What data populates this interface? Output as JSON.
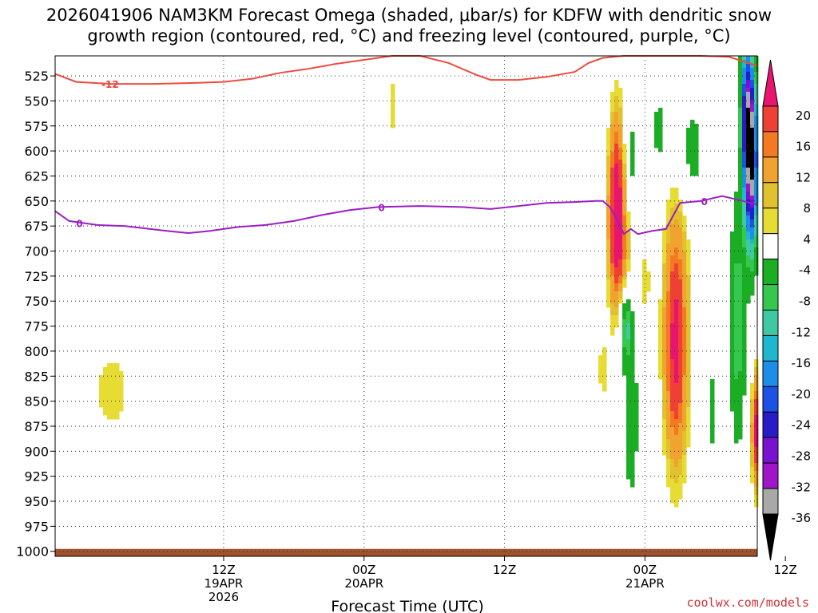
{
  "chart_data": {
    "type": "heatmap",
    "title_line1": "2026041906 NAM3KM Forecast Omega (shaded, μbar/s) for KDFW with dendritic snow",
    "title_line2": "growth region (contoured, red, °C) and freezing level (contoured, purple, °C)",
    "xlabel": "Forecast Time (UTC)",
    "credit": "coolwx.com/models",
    "x_range_hours": [
      -12,
      38
    ],
    "y_levels_hpa": [
      "525",
      "550",
      "575",
      "600",
      "625",
      "650",
      "675",
      "700",
      "725",
      "750",
      "775",
      "800",
      "825",
      "850",
      "875",
      "900",
      "925",
      "950",
      "975",
      "1000"
    ],
    "y_range_hpa": [
      505,
      1005
    ],
    "x_ticks": [
      {
        "hour": 0,
        "label": "12Z",
        "sub1": "19APR",
        "sub2": "2026"
      },
      {
        "hour": 10,
        "label": "00Z",
        "sub1": "20APR",
        "sub2": ""
      },
      {
        "hour": 20,
        "label": "12Z",
        "sub1": "",
        "sub2": ""
      },
      {
        "hour": 30,
        "label": "00Z",
        "sub1": "21APR",
        "sub2": ""
      },
      {
        "hour": 40,
        "label": "12Z",
        "sub1": "",
        "sub2": ""
      }
    ],
    "colorbar": {
      "labels": [
        "20",
        "16",
        "12",
        "8",
        "4",
        "-4",
        "-8",
        "-12",
        "-16",
        "-20",
        "-24",
        "-28",
        "-32",
        "-36"
      ],
      "colors": [
        "#e8156e",
        "#ef4035",
        "#f47a22",
        "#f0a32f",
        "#e2c12f",
        "#e6dc34",
        "#ffffff",
        "#1bae25",
        "#36c74e",
        "#3fc9a2",
        "#1fb6cf",
        "#1c8ee8",
        "#1c50e6",
        "#2a1bc8",
        "#7a10d0",
        "#9e16c8",
        "#a8a8a8",
        "#000000"
      ],
      "omega_bins": [
        20,
        18,
        16,
        14,
        12,
        10,
        8,
        6,
        4,
        -4,
        -6,
        -8,
        -10,
        -12,
        -14,
        -16,
        -18,
        -20,
        -22,
        -24,
        -26,
        -28,
        -30,
        -32,
        -34,
        -36
      ]
    },
    "brown_ground_level_hpa": 1000,
    "contour_red_label": "-12",
    "contour_purple_label": "0",
    "contour_red_minus12_hpa": [
      {
        "hour": -12.0,
        "p": 523
      },
      {
        "hour": -10.5,
        "p": 531
      },
      {
        "hour": -8.0,
        "p": 533
      },
      {
        "hour": -5.0,
        "p": 533
      },
      {
        "hour": -2.0,
        "p": 532
      },
      {
        "hour": 0.0,
        "p": 531
      },
      {
        "hour": 2.0,
        "p": 528
      },
      {
        "hour": 4.0,
        "p": 522
      },
      {
        "hour": 6.0,
        "p": 518
      },
      {
        "hour": 8.0,
        "p": 513
      },
      {
        "hour": 9.5,
        "p": 510
      },
      {
        "hour": 11.0,
        "p": 507
      },
      {
        "hour": 12.0,
        "p": 504
      },
      {
        "hour": 14.0,
        "p": 504
      },
      {
        "hour": 16.0,
        "p": 512
      },
      {
        "hour": 18.0,
        "p": 524
      },
      {
        "hour": 19.0,
        "p": 529
      },
      {
        "hour": 21.0,
        "p": 529
      },
      {
        "hour": 23.0,
        "p": 526
      },
      {
        "hour": 25.0,
        "p": 521
      },
      {
        "hour": 26.0,
        "p": 512
      },
      {
        "hour": 27.0,
        "p": 507
      },
      {
        "hour": 28.5,
        "p": 505
      },
      {
        "hour": 30.0,
        "p": 505
      },
      {
        "hour": 32.0,
        "p": 505
      },
      {
        "hour": 34.0,
        "p": 505
      },
      {
        "hour": 36.0,
        "p": 506
      },
      {
        "hour": 38.0,
        "p": 515
      }
    ],
    "contour_purple_zero_hpa": [
      {
        "hour": -12.0,
        "p": 660
      },
      {
        "hour": -11.0,
        "p": 670
      },
      {
        "hour": -9.0,
        "p": 674
      },
      {
        "hour": -7.0,
        "p": 675
      },
      {
        "hour": -4.0,
        "p": 680
      },
      {
        "hour": -2.5,
        "p": 682
      },
      {
        "hour": -1.0,
        "p": 680
      },
      {
        "hour": 1.0,
        "p": 676
      },
      {
        "hour": 3.0,
        "p": 674
      },
      {
        "hour": 5.0,
        "p": 670
      },
      {
        "hour": 7.0,
        "p": 664
      },
      {
        "hour": 9.0,
        "p": 659
      },
      {
        "hour": 11.0,
        "p": 656
      },
      {
        "hour": 14.0,
        "p": 655
      },
      {
        "hour": 17.0,
        "p": 656
      },
      {
        "hour": 19.0,
        "p": 658
      },
      {
        "hour": 21.0,
        "p": 655
      },
      {
        "hour": 23.0,
        "p": 652
      },
      {
        "hour": 25.0,
        "p": 651
      },
      {
        "hour": 26.5,
        "p": 650
      },
      {
        "hour": 27.0,
        "p": 650
      },
      {
        "hour": 27.5,
        "p": 656
      },
      {
        "hour": 28.0,
        "p": 668
      },
      {
        "hour": 28.5,
        "p": 683
      },
      {
        "hour": 29.0,
        "p": 678
      },
      {
        "hour": 29.5,
        "p": 683
      },
      {
        "hour": 30.5,
        "p": 680
      },
      {
        "hour": 31.5,
        "p": 678
      },
      {
        "hour": 32.5,
        "p": 652
      },
      {
        "hour": 34.0,
        "p": 650
      },
      {
        "hour": 35.5,
        "p": 645
      },
      {
        "hour": 37.0,
        "p": 650
      },
      {
        "hour": 38.0,
        "p": 654
      }
    ],
    "omega_blobs": [
      {
        "hour": -8.0,
        "p": 840,
        "dh": 1.9,
        "dp": 62,
        "peak": 5
      },
      {
        "hour": 12.0,
        "p": 555,
        "dh": 0.5,
        "dp": 45,
        "peak": 5
      },
      {
        "hour": 28.0,
        "p": 650,
        "dh": 0.6,
        "dp": 95,
        "peak": 20
      },
      {
        "hour": 28.4,
        "p": 720,
        "dh": 0.9,
        "dp": 80,
        "peak": 8
      },
      {
        "hour": 28.6,
        "p": 770,
        "dh": 0.5,
        "dp": 40,
        "peak": -14
      },
      {
        "hour": 27.0,
        "p": 820,
        "dh": 0.5,
        "dp": 40,
        "peak": 5
      },
      {
        "hour": 29.0,
        "p": 860,
        "dh": 0.7,
        "dp": 120,
        "peak": -6
      },
      {
        "hour": 29.0,
        "p": 610,
        "dh": 0.6,
        "dp": 60,
        "peak": -6
      },
      {
        "hour": 30.0,
        "p": 730,
        "dh": 0.5,
        "dp": 45,
        "peak": 5
      },
      {
        "hour": 31.0,
        "p": 580,
        "dh": 0.5,
        "dp": 40,
        "peak": -6
      },
      {
        "hour": 32.2,
        "p": 790,
        "dh": 0.9,
        "dp": 130,
        "peak": 20
      },
      {
        "hour": 33.3,
        "p": 600,
        "dh": 1.0,
        "dp": 50,
        "peak": -6
      },
      {
        "hour": 33.8,
        "p": 895,
        "dh": 0.2,
        "dp": 12,
        "peak": -6
      },
      {
        "hour": 34.8,
        "p": 860,
        "dh": 0.3,
        "dp": 50,
        "peak": -6
      },
      {
        "hour": 36.6,
        "p": 770,
        "dh": 0.6,
        "dp": 130,
        "peak": -10
      },
      {
        "hour": 37.6,
        "p": 610,
        "dh": 0.45,
        "dp": 90,
        "peak": -32
      },
      {
        "hour": 37.2,
        "p": 560,
        "dh": 0.4,
        "dp": 80,
        "peak": -20
      },
      {
        "hour": 38.0,
        "p": 880,
        "dh": 0.4,
        "dp": 60,
        "peak": 20
      }
    ]
  }
}
